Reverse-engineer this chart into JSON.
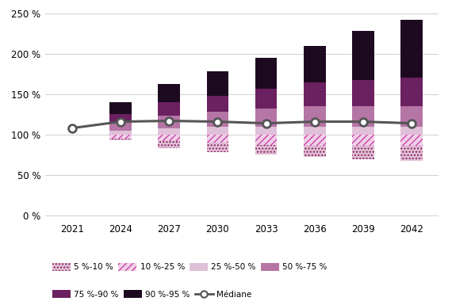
{
  "years": [
    2021,
    2024,
    2027,
    2030,
    2033,
    2036,
    2039,
    2042
  ],
  "median": [
    108,
    116,
    117,
    116,
    114,
    116,
    116,
    114
  ],
  "above_p25_50": [
    0,
    5,
    8,
    10,
    10,
    10,
    10,
    10
  ],
  "above_p50_75": [
    0,
    10,
    15,
    18,
    22,
    25,
    25,
    25
  ],
  "above_p75_90": [
    0,
    10,
    17,
    20,
    25,
    30,
    32,
    35
  ],
  "above_p90_95": [
    0,
    15,
    23,
    30,
    38,
    45,
    61,
    72
  ],
  "below_p10_25": [
    0,
    5,
    8,
    10,
    13,
    14,
    14,
    14
  ],
  "below_p5_10": [
    0,
    2,
    9,
    12,
    12,
    13,
    16,
    18
  ],
  "bar_width": 0.45,
  "colors_p90_95": "#1e0a20",
  "colors_p75_90": "#6b2060",
  "colors_p50_75": "#b575a5",
  "colors_p25_50": "#e0c0d8",
  "colors_p10_25_edge": "#cc44aa",
  "colors_p10_25_face": "#f0d0e8",
  "colors_p5_10_edge": "#882255",
  "colors_p5_10_face": "#e0c0d8",
  "ylim_min": -5,
  "ylim_max": 255,
  "yticks": [
    0,
    50,
    100,
    150,
    200,
    250
  ],
  "ytick_labels": [
    "0 %",
    "50 %",
    "100 %",
    "150 %",
    "200 %",
    "250 %"
  ],
  "background": "#ffffff",
  "grid_color": "#d0d0d0",
  "median_color": "#555555"
}
